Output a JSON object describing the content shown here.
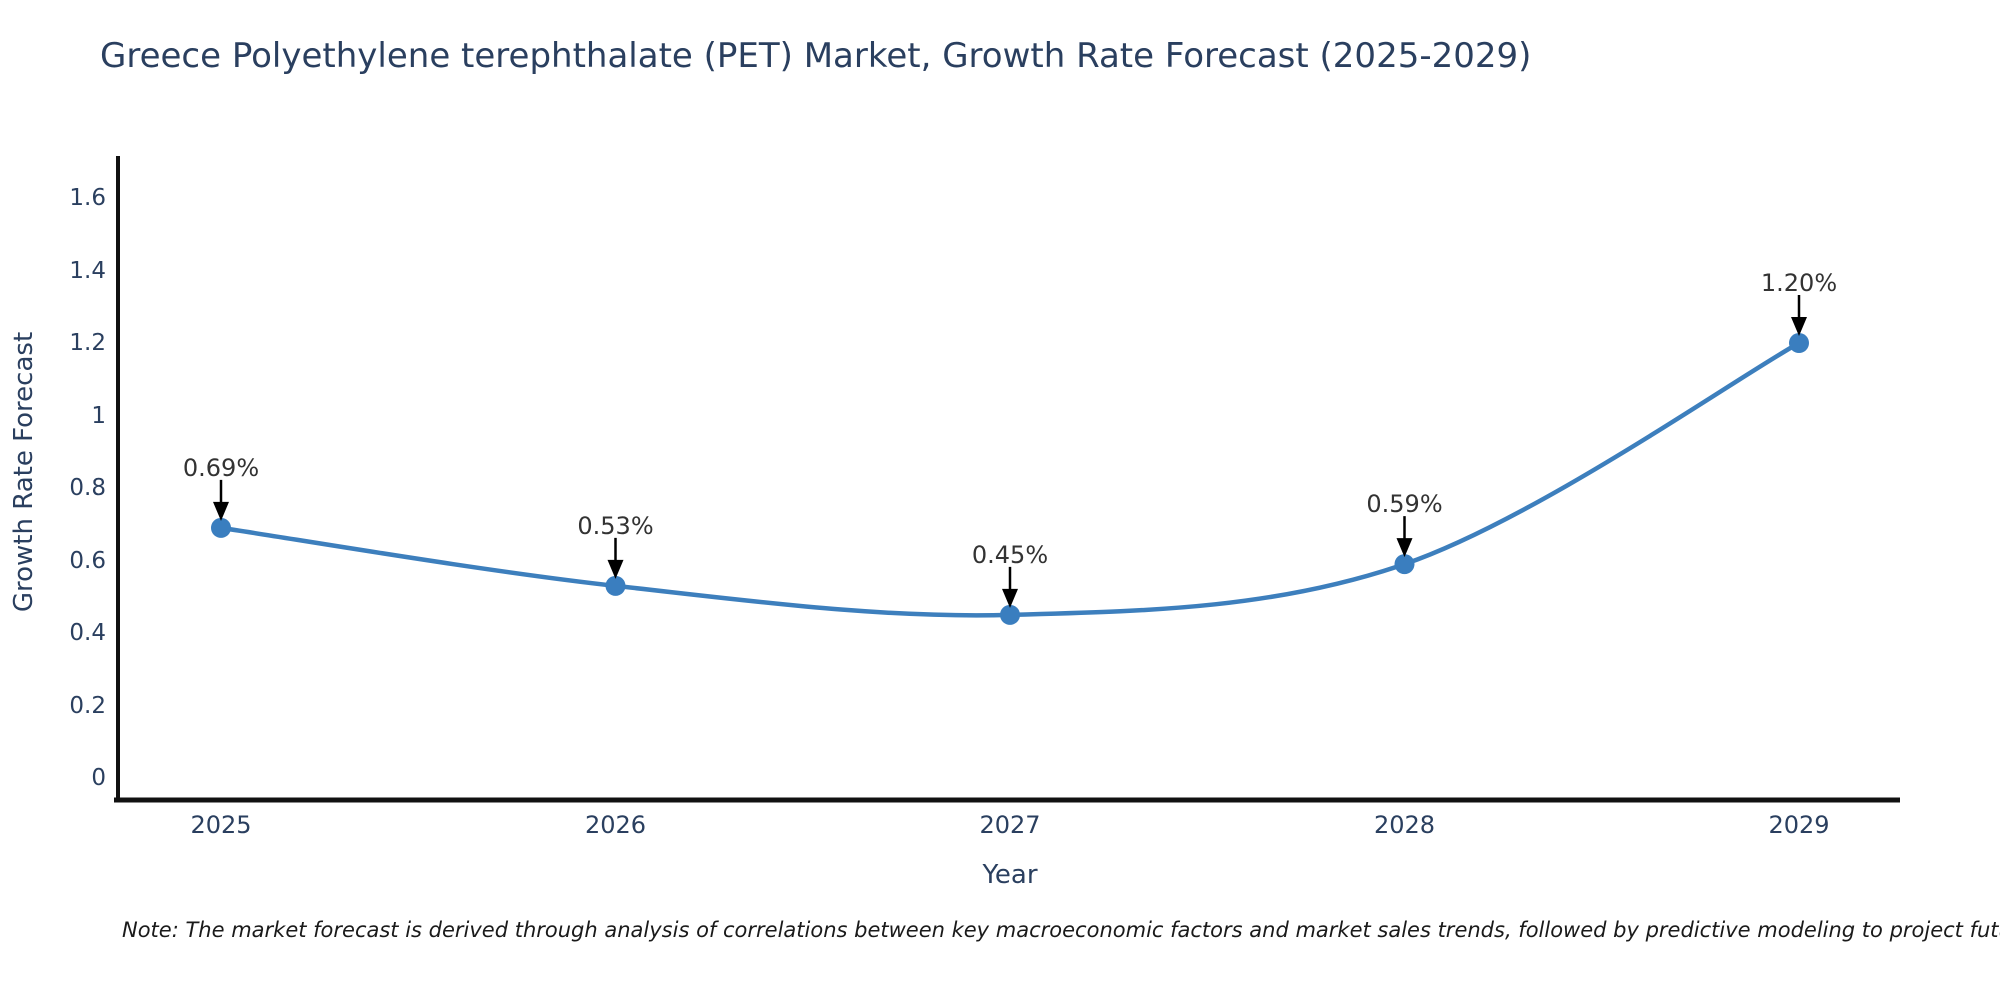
{
  "title": "Greece Polyethylene terephthalate (PET) Market, Growth Rate Forecast (2025-2029)",
  "note": "Note: The market forecast is derived through analysis of correlations between key macroeconomic factors and market sales trends, followed by predictive modeling to project future sales",
  "chart_data": {
    "type": "line",
    "title": "Greece Polyethylene terephthalate (PET) Market, Growth Rate Forecast (2025-2029)",
    "xlabel": "Year",
    "ylabel": "Growth Rate Forecast",
    "categories": [
      "2025",
      "2026",
      "2027",
      "2028",
      "2029"
    ],
    "values": [
      0.69,
      0.53,
      0.45,
      0.59,
      1.2
    ],
    "point_labels": [
      "0.69%",
      "0.53%",
      "0.45%",
      "0.59%",
      "1.20%"
    ],
    "ytick_values": [
      0,
      0.2,
      0.4,
      0.6,
      0.8,
      1,
      1.2,
      1.4,
      1.6
    ],
    "ytick_labels": [
      "0",
      "0.2",
      "0.4",
      "0.6",
      "0.8",
      "1",
      "1.2",
      "1.4",
      "1.6"
    ],
    "ylim": [
      -0.08,
      1.71
    ],
    "grid": false,
    "legend": "none",
    "line_smoothing": "spline",
    "annotations": "value labels with downward black arrows above each point",
    "colors": {
      "line": "#3d7fbd",
      "marker": "#3a7ebf",
      "arrow": "#000000",
      "axis": "#111111",
      "title_text": "#2a3f5f",
      "tick_text": "#2a3f5f",
      "annotation_text": "#333333",
      "note_text": "#1a1a1a",
      "background": "#ffffff"
    }
  }
}
